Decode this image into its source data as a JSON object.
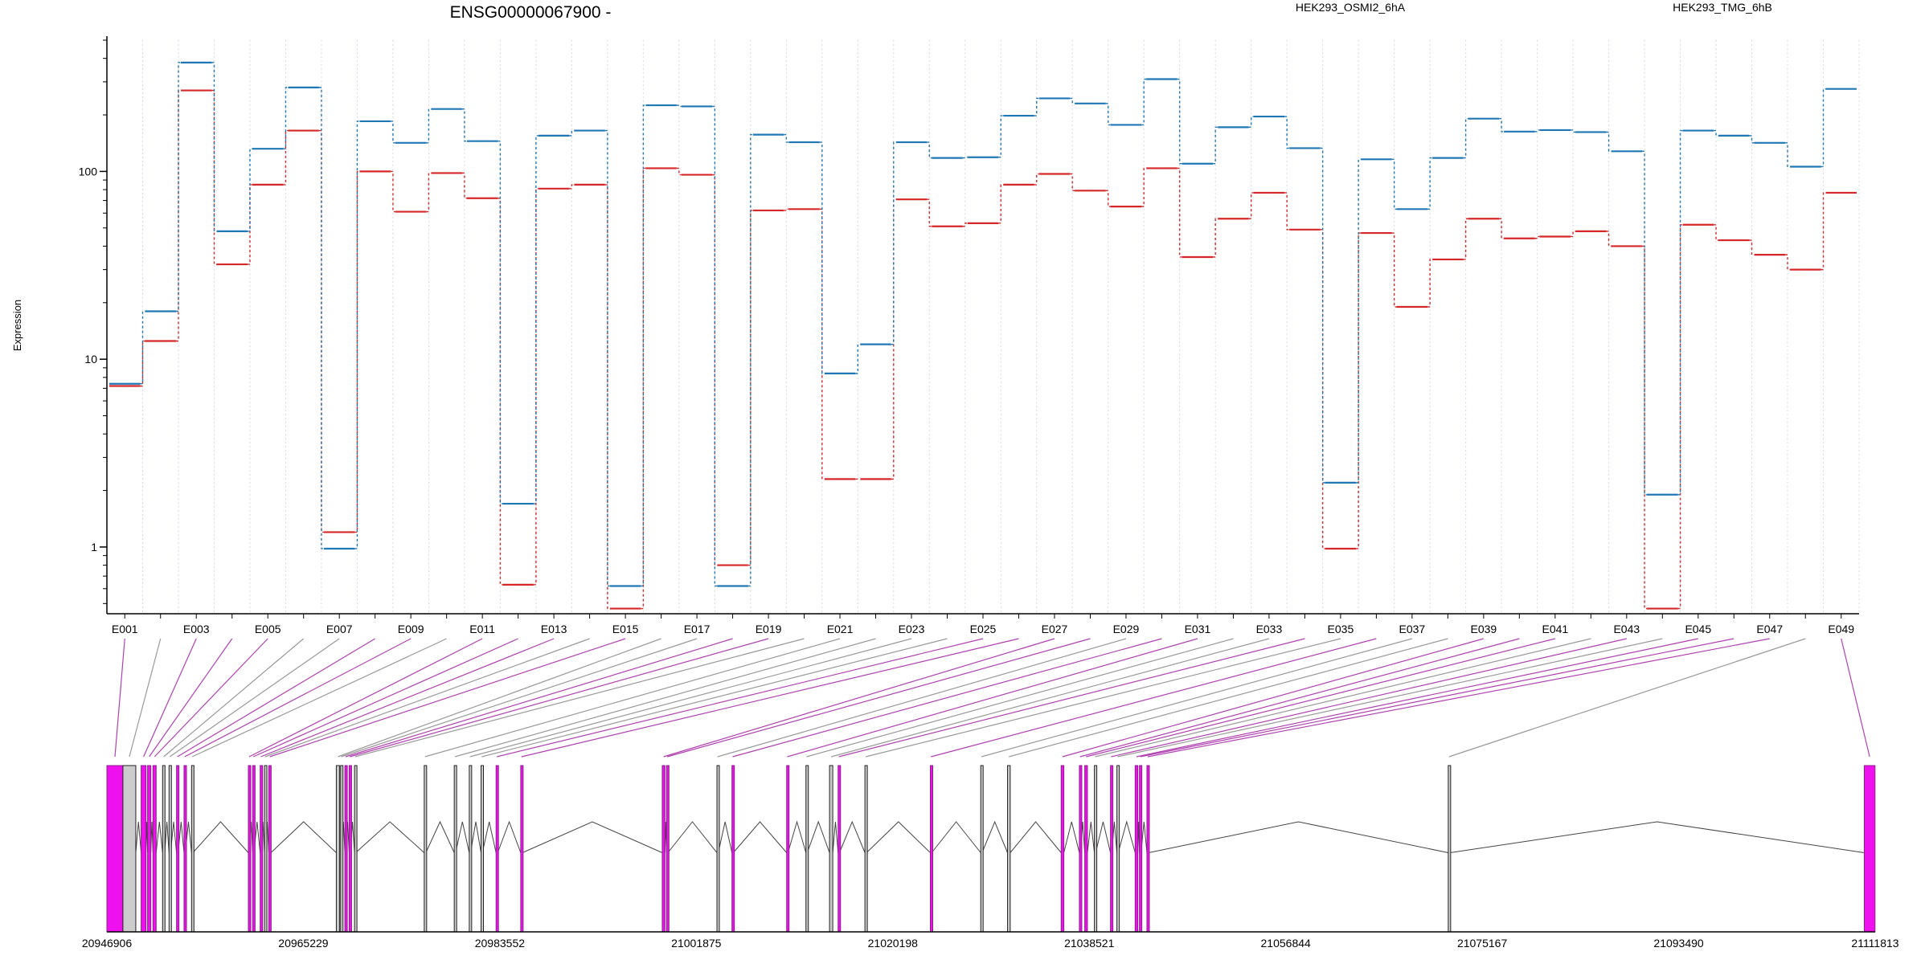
{
  "header": {
    "gene_title": "ENSG00000067900 -",
    "ylabel": "Expression"
  },
  "legend": [
    {
      "name": "HEK293_OSMI2_6hA",
      "color": "#d62728"
    },
    {
      "name": "HEK293_TMG_6hB",
      "color": "#1f77b4"
    }
  ],
  "colors": {
    "exon_highlight": "#ee11ee",
    "exon_plain": "#cccccc",
    "link_highlight": "#b040b0",
    "link_plain": "#999999",
    "grid": "#d8d8e8"
  },
  "chart_data": {
    "type": "line",
    "y_scale": "log",
    "ylim": [
      0.45,
      500
    ],
    "y_ticks": [
      1,
      10,
      100
    ],
    "y_tick_labels": [
      "1",
      "10",
      "100"
    ],
    "exons": [
      "E001",
      "E002",
      "E003",
      "E004",
      "E005",
      "E006",
      "E007",
      "E008",
      "E009",
      "E010",
      "E011",
      "E012",
      "E013",
      "E014",
      "E015",
      "E016",
      "E017",
      "E018",
      "E019",
      "E020",
      "E021",
      "E022",
      "E023",
      "E024",
      "E025",
      "E026",
      "E027",
      "E028",
      "E029",
      "E030",
      "E031",
      "E032",
      "E033",
      "E034",
      "E035",
      "E036",
      "E037",
      "E038",
      "E039",
      "E040",
      "E041",
      "E042",
      "E043",
      "E044",
      "E045",
      "E046",
      "E047",
      "E048",
      "E049"
    ],
    "x_tick_labels": [
      "E001",
      "E003",
      "E005",
      "E007",
      "E009",
      "E011",
      "E013",
      "E015",
      "E017",
      "E019",
      "E021",
      "E023",
      "E025",
      "E027",
      "E029",
      "E031",
      "E033",
      "E035",
      "E037",
      "E039",
      "E041",
      "E043",
      "E045",
      "E047",
      "E049"
    ],
    "series": [
      {
        "name": "HEK293_OSMI2_6hA",
        "values": [
          7.2,
          12.5,
          270,
          32,
          85,
          165,
          1.2,
          100,
          61,
          98,
          72,
          0.63,
          81,
          85,
          0.47,
          104,
          96,
          0.8,
          62,
          63,
          2.3,
          2.3,
          71,
          51,
          53,
          85,
          97,
          79,
          65,
          104,
          35,
          56,
          77,
          49,
          0.98,
          47,
          19,
          34,
          56,
          44,
          45,
          48,
          40,
          0.47,
          52,
          43,
          36,
          30,
          77
        ]
      },
      {
        "name": "HEK293_TMG_6hB",
        "values": [
          7.4,
          18,
          380,
          48,
          132,
          280,
          0.98,
          185,
          142,
          215,
          145,
          1.7,
          155,
          165,
          0.62,
          225,
          222,
          0.62,
          157,
          143,
          8.4,
          12,
          143,
          118,
          119,
          198,
          245,
          230,
          177,
          310,
          110,
          172,
          196,
          133,
          2.2,
          116,
          63,
          118,
          191,
          163,
          166,
          162,
          128,
          1.9,
          165,
          155,
          142,
          106,
          275
        ]
      }
    ],
    "genomic_axis": {
      "tick_labels": [
        "20946906",
        "20965229",
        "20983552",
        "21001875",
        "21020198",
        "21038521",
        "21056844",
        "21075167",
        "21093490",
        "21111813"
      ],
      "range": [
        20946906,
        21111813
      ]
    }
  }
}
